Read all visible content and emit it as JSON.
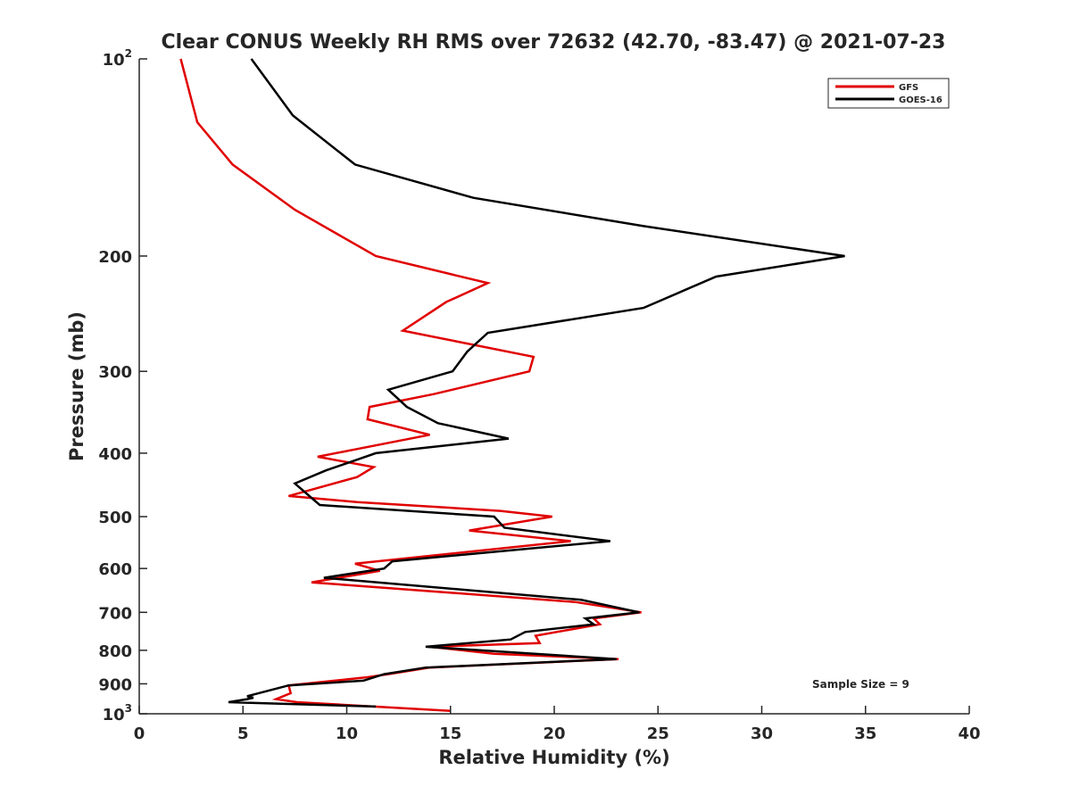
{
  "chart_data": {
    "type": "line",
    "title": "Clear CONUS Weekly RH RMS over 72632 (42.70, -83.47) @ 2021-07-23",
    "xlabel": "Relative Humidity (%)",
    "ylabel": "Pressure (mb)",
    "xlim": [
      0,
      40
    ],
    "ylim": [
      100,
      1000
    ],
    "y_scale": "log",
    "y_reversed": true,
    "x_ticks": [
      "0",
      "5",
      "10",
      "15",
      "20",
      "25",
      "30",
      "35",
      "40"
    ],
    "y_ticks": [
      {
        "value": 100,
        "label": "10",
        "sup": "2"
      },
      {
        "value": 200,
        "label": "200",
        "sup": ""
      },
      {
        "value": 300,
        "label": "300",
        "sup": ""
      },
      {
        "value": 400,
        "label": "400",
        "sup": ""
      },
      {
        "value": 500,
        "label": "500",
        "sup": ""
      },
      {
        "value": 600,
        "label": "600",
        "sup": ""
      },
      {
        "value": 700,
        "label": "700",
        "sup": ""
      },
      {
        "value": 800,
        "label": "800",
        "sup": ""
      },
      {
        "value": 900,
        "label": "900",
        "sup": ""
      },
      {
        "value": 1000,
        "label": "10",
        "sup": "3"
      }
    ],
    "legend_position": "top-right",
    "grid": false,
    "annotation": "Sample Size = 9",
    "series": [
      {
        "name": "GFS",
        "color": "#e00000",
        "points": [
          [
            2.0,
            100
          ],
          [
            2.8,
            125
          ],
          [
            4.5,
            145
          ],
          [
            7.5,
            170
          ],
          [
            11.4,
            200
          ],
          [
            16.8,
            220
          ],
          [
            14.8,
            235
          ],
          [
            12.7,
            260
          ],
          [
            19.0,
            285
          ],
          [
            18.8,
            300
          ],
          [
            14.2,
            325
          ],
          [
            11.1,
            340
          ],
          [
            11.0,
            355
          ],
          [
            14.0,
            375
          ],
          [
            8.6,
            405
          ],
          [
            11.3,
            420
          ],
          [
            10.5,
            435
          ],
          [
            7.2,
            465
          ],
          [
            10.5,
            475
          ],
          [
            17.4,
            490
          ],
          [
            19.9,
            500
          ],
          [
            15.9,
            525
          ],
          [
            20.8,
            545
          ],
          [
            10.4,
            590
          ],
          [
            11.6,
            605
          ],
          [
            8.3,
            630
          ],
          [
            21.0,
            675
          ],
          [
            24.2,
            700
          ],
          [
            21.9,
            715
          ],
          [
            22.2,
            730
          ],
          [
            19.1,
            760
          ],
          [
            19.3,
            780
          ],
          [
            14.0,
            790
          ],
          [
            17.1,
            810
          ],
          [
            23.1,
            825
          ],
          [
            14.0,
            850
          ],
          [
            12.0,
            870
          ],
          [
            10.9,
            880
          ],
          [
            7.2,
            905
          ],
          [
            7.3,
            930
          ],
          [
            6.6,
            950
          ],
          [
            7.6,
            960
          ],
          [
            15.0,
            990
          ]
        ]
      },
      {
        "name": "GOES-16",
        "color": "#000000",
        "points": [
          [
            5.4,
            100
          ],
          [
            7.4,
            122
          ],
          [
            10.4,
            145
          ],
          [
            16.1,
            163
          ],
          [
            24.3,
            180
          ],
          [
            34.0,
            200
          ],
          [
            27.8,
            215
          ],
          [
            24.3,
            240
          ],
          [
            16.8,
            262
          ],
          [
            15.8,
            280
          ],
          [
            15.1,
            300
          ],
          [
            12.0,
            320
          ],
          [
            12.9,
            340
          ],
          [
            14.4,
            360
          ],
          [
            17.8,
            380
          ],
          [
            11.4,
            400
          ],
          [
            9.0,
            425
          ],
          [
            7.5,
            445
          ],
          [
            8.7,
            480
          ],
          [
            17.1,
            500
          ],
          [
            17.6,
            520
          ],
          [
            22.7,
            545
          ],
          [
            12.2,
            585
          ],
          [
            11.8,
            600
          ],
          [
            8.9,
            620
          ],
          [
            21.3,
            670
          ],
          [
            24.1,
            700
          ],
          [
            21.5,
            715
          ],
          [
            21.9,
            730
          ],
          [
            18.6,
            750
          ],
          [
            17.9,
            770
          ],
          [
            13.8,
            790
          ],
          [
            23.0,
            825
          ],
          [
            13.8,
            850
          ],
          [
            11.8,
            870
          ],
          [
            10.8,
            890
          ],
          [
            7.2,
            905
          ],
          [
            5.2,
            940
          ],
          [
            5.5,
            945
          ],
          [
            5.2,
            950
          ],
          [
            4.3,
            960
          ],
          [
            11.4,
            975
          ]
        ]
      }
    ]
  }
}
